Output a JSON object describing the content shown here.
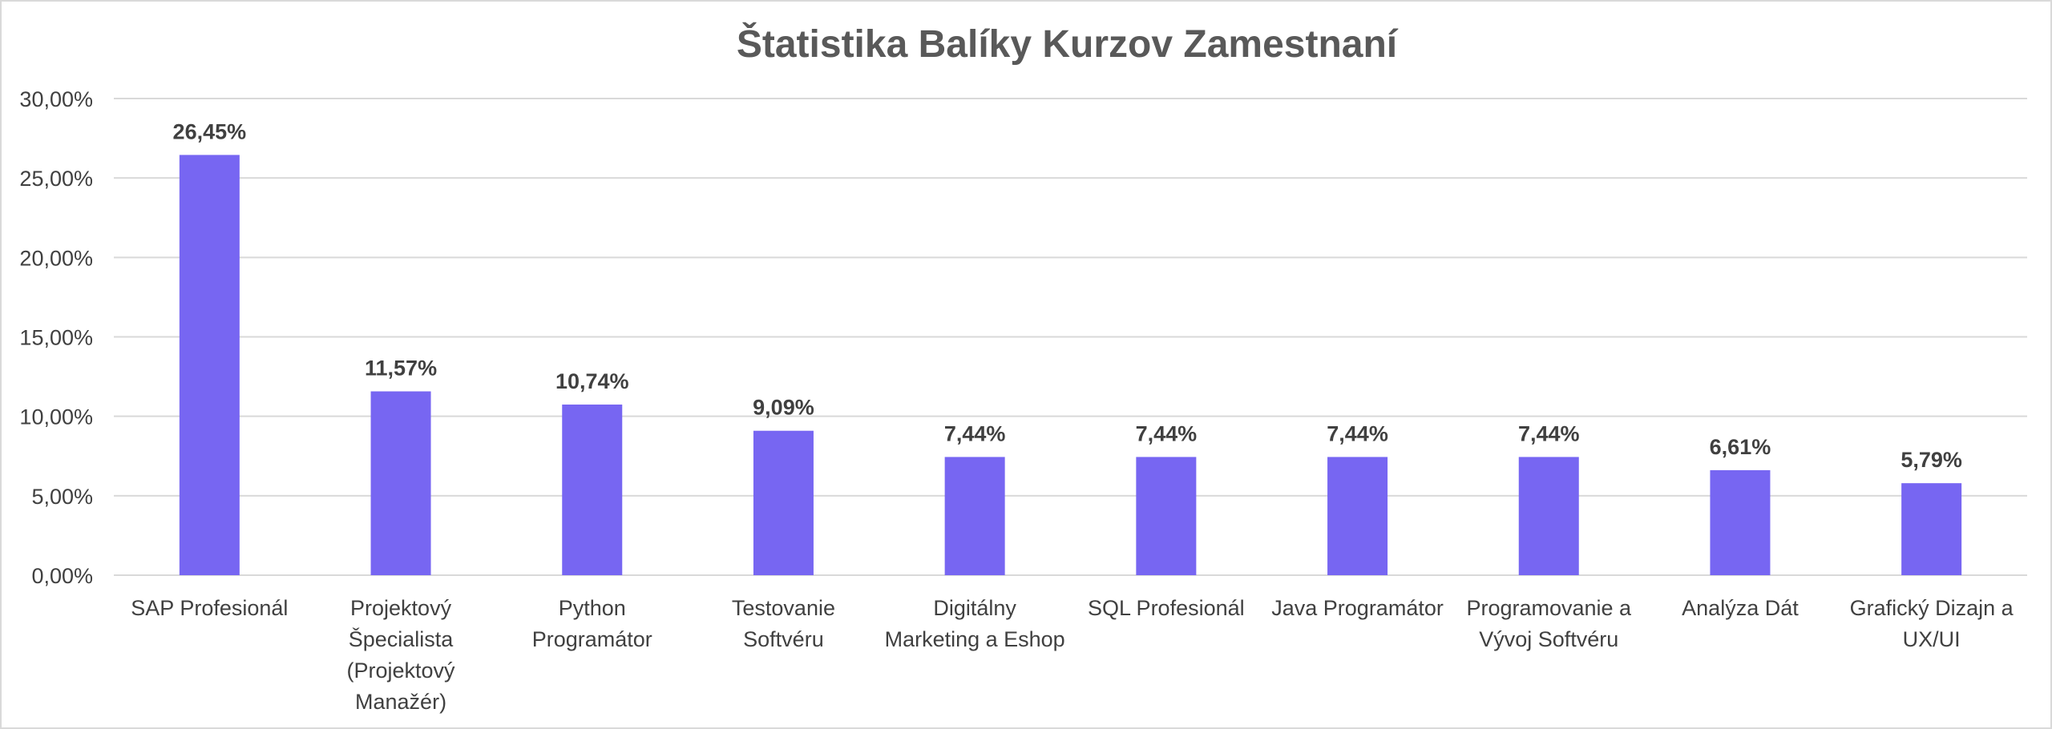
{
  "chart_data": {
    "type": "bar",
    "title": "Štatistika Balíky Kurzov Zamestnaní",
    "xlabel": "",
    "ylabel": "",
    "ylim": [
      0,
      30
    ],
    "yticks": [
      0,
      5,
      10,
      15,
      20,
      25,
      30
    ],
    "ytick_labels": [
      "0,00%",
      "5,00%",
      "10,00%",
      "15,00%",
      "20,00%",
      "25,00%",
      "30,00%"
    ],
    "grid": true,
    "legend": "none",
    "bar_color": "#7766f2",
    "categories": [
      [
        "SAP Profesionál"
      ],
      [
        "Projektový",
        "Špecialista",
        "(Projektový",
        "Manažér)"
      ],
      [
        "Python",
        "Programátor"
      ],
      [
        "Testovanie",
        "Softvéru"
      ],
      [
        "Digitálny",
        "Marketing a Eshop"
      ],
      [
        "SQL Profesionál"
      ],
      [
        "Java Programátor"
      ],
      [
        "Programovanie a",
        "Vývoj Softvéru"
      ],
      [
        "Analýza Dát"
      ],
      [
        "Grafický Dizajn a",
        "UX/UI"
      ]
    ],
    "values": [
      26.45,
      11.57,
      10.74,
      9.09,
      7.44,
      7.44,
      7.44,
      7.44,
      6.61,
      5.79
    ],
    "value_labels": [
      "26,45%",
      "11,57%",
      "10,74%",
      "9,09%",
      "7,44%",
      "7,44%",
      "7,44%",
      "7,44%",
      "6,61%",
      "5,79%"
    ]
  }
}
